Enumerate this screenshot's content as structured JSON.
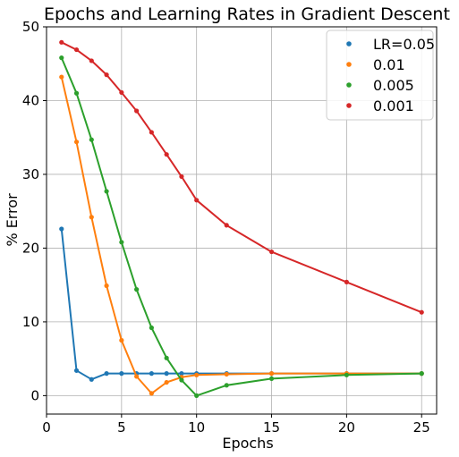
{
  "chart_data": {
    "type": "line",
    "title": "Epochs and Learning Rates in Gradient Descent",
    "xlabel": "Epochs",
    "ylabel": "% Error",
    "xlim": [
      0,
      26
    ],
    "ylim": [
      -2.5,
      50
    ],
    "xticks": [
      0,
      5,
      10,
      15,
      20,
      25
    ],
    "yticks": [
      0,
      10,
      20,
      30,
      40,
      50
    ],
    "grid": true,
    "legend_position": "top-right",
    "x": [
      1,
      2,
      3,
      4,
      5,
      6,
      7,
      8,
      9,
      10,
      12,
      15,
      20,
      25
    ],
    "series": [
      {
        "name": "LR=0.05",
        "color": "#1f77b4",
        "values": [
          22.6,
          3.4,
          2.2,
          3.0,
          3.0,
          3.0,
          3.0,
          3.0,
          3.0,
          3.0,
          3.0,
          3.0,
          3.0,
          3.0
        ]
      },
      {
        "name": "0.01",
        "color": "#ff7f0e",
        "values": [
          43.2,
          34.4,
          24.2,
          14.9,
          7.5,
          2.6,
          0.3,
          1.8,
          2.5,
          2.8,
          2.9,
          3.0,
          3.0,
          3.0
        ]
      },
      {
        "name": "0.005",
        "color": "#2ca02c",
        "values": [
          45.8,
          41.0,
          34.7,
          27.7,
          20.8,
          14.4,
          9.2,
          5.1,
          2.1,
          0.0,
          1.4,
          2.3,
          2.8,
          3.0
        ]
      },
      {
        "name": "0.001",
        "color": "#d62728",
        "values": [
          47.9,
          46.9,
          45.4,
          43.5,
          41.1,
          38.6,
          35.7,
          32.7,
          29.7,
          26.5,
          23.1,
          19.5,
          15.4,
          11.3
        ]
      }
    ]
  }
}
